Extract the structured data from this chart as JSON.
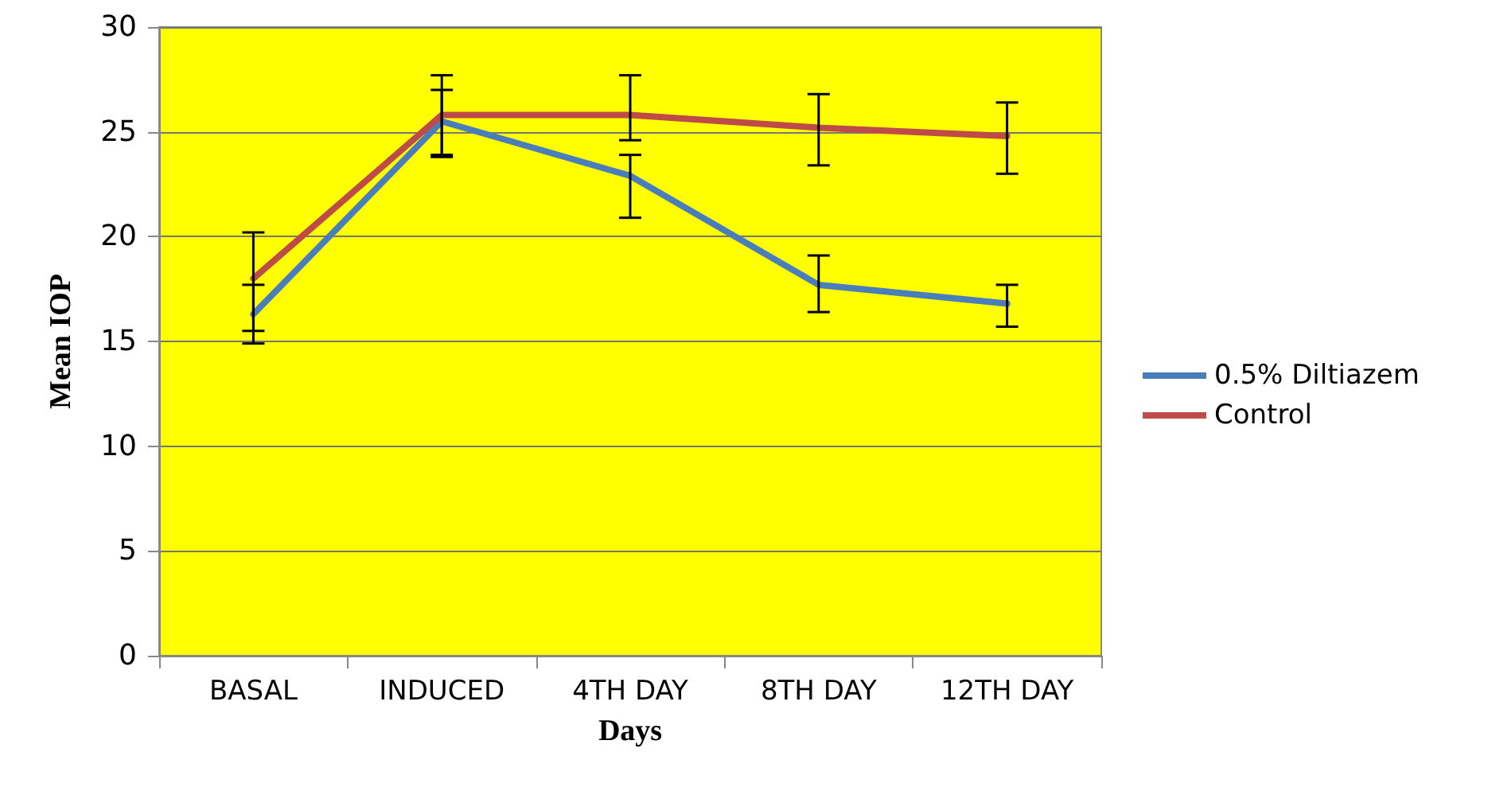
{
  "chart_data": {
    "type": "line",
    "xlabel": "Days",
    "ylabel": "Mean IOP",
    "categories": [
      "BASAL",
      "INDUCED",
      "4TH DAY",
      "8TH DAY",
      "12TH DAY"
    ],
    "series": [
      {
        "name": "0.5% Diltiazem",
        "color": "#4a7ebb",
        "values": [
          16.3,
          25.5,
          22.9,
          17.7,
          16.8
        ],
        "errors": [
          [
            15.5,
            17.7
          ],
          [
            23.9,
            27.0
          ],
          [
            20.9,
            23.9
          ],
          [
            16.4,
            19.1
          ],
          [
            15.7,
            17.7
          ]
        ]
      },
      {
        "name": "Control",
        "color": "#be4b48",
        "values": [
          18.0,
          25.8,
          25.8,
          25.2,
          24.8
        ],
        "errors": [
          [
            14.9,
            20.2
          ],
          [
            23.8,
            27.7
          ],
          [
            24.6,
            27.7
          ],
          [
            23.4,
            26.8
          ],
          [
            23.0,
            26.4
          ]
        ]
      }
    ],
    "ylim": [
      0,
      30
    ],
    "yticks": [
      0,
      5,
      10,
      15,
      20,
      25,
      30
    ],
    "grid": "y",
    "legend": "right",
    "marker": "none",
    "line_style": "solid"
  }
}
